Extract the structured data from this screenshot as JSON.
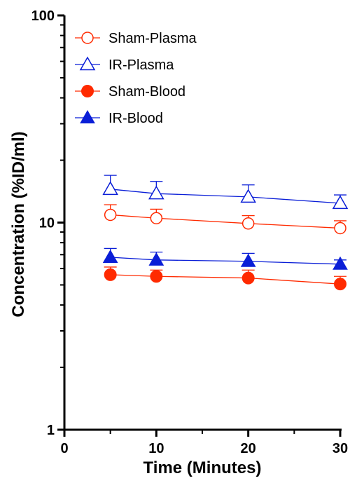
{
  "chart_data": {
    "type": "scatter",
    "xlabel": "Time (Minutes)",
    "ylabel": "Concentration (%ID/ml)",
    "xlim": [
      0,
      30
    ],
    "ylim": [
      1,
      100
    ],
    "yscale": "log",
    "x_ticks": [
      "0",
      "10",
      "20",
      "30"
    ],
    "y_ticks": [
      "1",
      "10",
      "100"
    ],
    "legend_position": "top-left",
    "x": [
      5,
      10,
      20,
      30
    ],
    "series": [
      {
        "name": "Sham-Plasma",
        "marker": "circle-open",
        "color": "#ff2a00",
        "values": [
          10.9,
          10.5,
          9.9,
          9.4
        ],
        "error_upper": [
          12.2,
          11.6,
          10.8,
          10.2
        ]
      },
      {
        "name": "IR-Plasma",
        "marker": "triangle-open",
        "color": "#0a1ed7",
        "values": [
          14.5,
          13.8,
          13.3,
          12.4
        ],
        "error_upper": [
          16.9,
          15.8,
          15.2,
          13.6
        ]
      },
      {
        "name": "Sham-Blood",
        "marker": "circle-filled",
        "color": "#ff2a00",
        "values": [
          5.6,
          5.5,
          5.4,
          5.05
        ],
        "error_upper": [
          6.1,
          5.9,
          5.9,
          5.5
        ]
      },
      {
        "name": "IR-Blood",
        "marker": "triangle-filled",
        "color": "#0a1ed7",
        "values": [
          6.8,
          6.6,
          6.5,
          6.3
        ],
        "error_upper": [
          7.5,
          7.2,
          7.1,
          6.6
        ]
      }
    ]
  }
}
